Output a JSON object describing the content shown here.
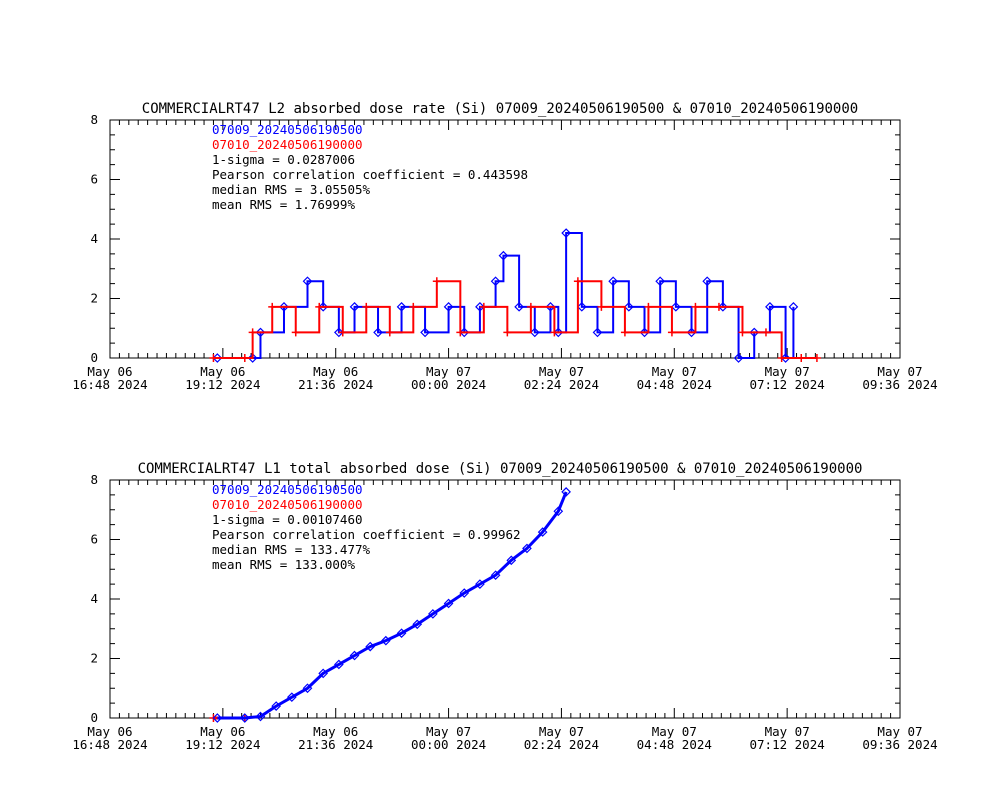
{
  "chart_data": [
    {
      "type": "line",
      "title": "COMMERCIALRT47 L2 absorbed dose rate (Si) 07009_20240506190500 & 07010_20240506190000",
      "xlabel": "",
      "ylabel": "",
      "ylim": [
        0,
        8
      ],
      "yticks": [
        "0",
        "2",
        "4",
        "6",
        "8"
      ],
      "xlim": [
        "2024-05-06 16:48",
        "2024-05-07 09:36"
      ],
      "xticks": [
        {
          "line1": "May 06",
          "line2": "16:48 2024"
        },
        {
          "line1": "May 06",
          "line2": "19:12 2024"
        },
        {
          "line1": "May 06",
          "line2": "21:36 2024"
        },
        {
          "line1": "May 07",
          "line2": "00:00 2024"
        },
        {
          "line1": "May 07",
          "line2": "02:24 2024"
        },
        {
          "line1": "May 07",
          "line2": "04:48 2024"
        },
        {
          "line1": "May 07",
          "line2": "07:12 2024"
        },
        {
          "line1": "May 07",
          "line2": "09:36 2024"
        }
      ],
      "annotations": [
        "1-sigma = 0.0287006",
        "Pearson correlation coefficient = 0.443598",
        "median RMS = 3.05505%",
        "mean RMS = 1.76999%"
      ],
      "series": [
        {
          "name": "07009_20240506190500",
          "color": "#0000ff",
          "marker": "diamond",
          "x": [
            "2024-05-06 19:05",
            "2024-05-06 19:50",
            "2024-05-06 20:00",
            "2024-05-06 20:30",
            "2024-05-06 21:00",
            "2024-05-06 21:20",
            "2024-05-06 21:40",
            "2024-05-06 22:00",
            "2024-05-06 22:30",
            "2024-05-06 23:00",
            "2024-05-06 23:30",
            "2024-05-07 00:00",
            "2024-05-07 00:20",
            "2024-05-07 00:40",
            "2024-05-07 01:00",
            "2024-05-07 01:10",
            "2024-05-07 01:30",
            "2024-05-07 01:50",
            "2024-05-07 02:10",
            "2024-05-07 02:20",
            "2024-05-07 02:30",
            "2024-05-07 02:50",
            "2024-05-07 03:10",
            "2024-05-07 03:30",
            "2024-05-07 03:50",
            "2024-05-07 04:10",
            "2024-05-07 04:30",
            "2024-05-07 04:50",
            "2024-05-07 05:10",
            "2024-05-07 05:30",
            "2024-05-07 05:50",
            "2024-05-07 06:10",
            "2024-05-07 06:30",
            "2024-05-07 06:50",
            "2024-05-07 07:10",
            "2024-05-07 07:20"
          ],
          "values": [
            0.0,
            0.0,
            0.86,
            1.72,
            2.58,
            1.72,
            0.86,
            1.72,
            0.86,
            1.72,
            0.86,
            1.72,
            0.86,
            1.72,
            2.58,
            3.44,
            1.72,
            0.86,
            1.72,
            0.86,
            4.2,
            1.72,
            0.86,
            2.58,
            1.72,
            0.86,
            2.58,
            1.72,
            0.86,
            2.58,
            1.72,
            0.0,
            0.86,
            1.72,
            0.0,
            1.72
          ]
        },
        {
          "name": "07010_20240506190000",
          "color": "#ff0000",
          "marker": "plus",
          "x": [
            "2024-05-06 19:00",
            "2024-05-06 19:40",
            "2024-05-06 19:50",
            "2024-05-06 20:15",
            "2024-05-06 20:45",
            "2024-05-06 21:15",
            "2024-05-06 21:45",
            "2024-05-06 22:15",
            "2024-05-06 22:45",
            "2024-05-06 23:15",
            "2024-05-06 23:45",
            "2024-05-07 00:15",
            "2024-05-07 00:45",
            "2024-05-07 01:15",
            "2024-05-07 01:45",
            "2024-05-07 02:15",
            "2024-05-07 02:45",
            "2024-05-07 03:15",
            "2024-05-07 03:45",
            "2024-05-07 04:15",
            "2024-05-07 04:45",
            "2024-05-07 05:15",
            "2024-05-07 05:45",
            "2024-05-07 06:15",
            "2024-05-07 06:45",
            "2024-05-07 07:05",
            "2024-05-07 07:30",
            "2024-05-07 07:50"
          ],
          "values": [
            0.0,
            0.0,
            0.86,
            1.72,
            0.86,
            1.72,
            0.86,
            1.72,
            0.86,
            1.72,
            2.58,
            0.86,
            1.72,
            0.86,
            1.72,
            0.86,
            2.58,
            1.72,
            0.86,
            1.72,
            0.86,
            1.72,
            1.72,
            0.86,
            0.86,
            0.0,
            0.0,
            0.0
          ]
        }
      ]
    },
    {
      "type": "line",
      "title": "COMMERCIALRT47 L1 total absorbed dose (Si) 07009_20240506190500 & 07010_20240506190000",
      "xlabel": "",
      "ylabel": "",
      "ylim": [
        0,
        8
      ],
      "yticks": [
        "0",
        "2",
        "4",
        "6",
        "8"
      ],
      "xlim": [
        "2024-05-06 16:48",
        "2024-05-07 09:36"
      ],
      "xticks": [
        {
          "line1": "May 06",
          "line2": "16:48 2024"
        },
        {
          "line1": "May 06",
          "line2": "19:12 2024"
        },
        {
          "line1": "May 06",
          "line2": "21:36 2024"
        },
        {
          "line1": "May 07",
          "line2": "00:00 2024"
        },
        {
          "line1": "May 07",
          "line2": "02:24 2024"
        },
        {
          "line1": "May 07",
          "line2": "04:48 2024"
        },
        {
          "line1": "May 07",
          "line2": "07:12 2024"
        },
        {
          "line1": "May 07",
          "line2": "09:36 2024"
        }
      ],
      "annotations": [
        "1-sigma = 0.00107460",
        "Pearson correlation coefficient = 0.99962",
        "median RMS = 133.477%",
        "mean RMS = 133.000%"
      ],
      "series": [
        {
          "name": "07009_20240506190500",
          "color": "#0000ff",
          "marker": "diamond",
          "x": [
            "2024-05-06 19:05",
            "2024-05-06 19:40",
            "2024-05-06 20:00",
            "2024-05-06 20:20",
            "2024-05-06 20:40",
            "2024-05-06 21:00",
            "2024-05-06 21:20",
            "2024-05-06 21:40",
            "2024-05-06 22:00",
            "2024-05-06 22:20",
            "2024-05-06 22:40",
            "2024-05-06 23:00",
            "2024-05-06 23:20",
            "2024-05-06 23:40",
            "2024-05-07 00:00",
            "2024-05-07 00:20",
            "2024-05-07 00:40",
            "2024-05-07 01:00",
            "2024-05-07 01:20",
            "2024-05-07 01:40",
            "2024-05-07 02:00",
            "2024-05-07 02:20",
            "2024-05-07 02:30"
          ],
          "values": [
            0.0,
            0.0,
            0.05,
            0.4,
            0.7,
            1.0,
            1.5,
            1.8,
            2.1,
            2.4,
            2.6,
            2.85,
            3.15,
            3.5,
            3.85,
            4.2,
            4.5,
            4.8,
            5.3,
            5.7,
            6.25,
            6.95,
            7.6
          ]
        },
        {
          "name": "07010_20240506190000",
          "color": "#ff0000",
          "marker": "plus",
          "x": [
            "2024-05-06 19:00",
            "2024-05-06 19:40"
          ],
          "values": [
            0.0,
            0.0
          ]
        }
      ]
    }
  ]
}
